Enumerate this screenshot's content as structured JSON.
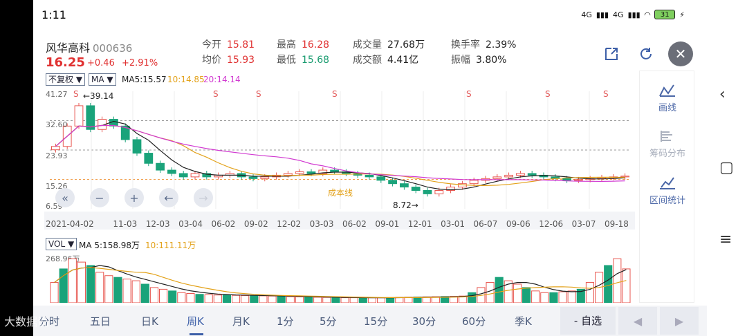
{
  "status": {
    "time": "1:11",
    "network": "4G",
    "battery": "31"
  },
  "stock": {
    "name": "风华高科",
    "code": "000636",
    "price": "16.25",
    "change": "+0.46",
    "change_pct": "+2.91%"
  },
  "quotes": {
    "open_label": "今开",
    "open": "15.81",
    "avg_label": "均价",
    "avg": "15.93",
    "high_label": "最高",
    "high": "16.28",
    "low_label": "最低",
    "low": "15.68",
    "vol_label": "成交量",
    "vol": "27.68万",
    "amt_label": "成交额",
    "amt": "4.41亿",
    "turnover_label": "换手率",
    "turnover": "2.39%",
    "amp_label": "振幅",
    "amp": "3.80%"
  },
  "kchart": {
    "adjust": "不复权 ▼",
    "indicator": "MA ▼",
    "ma5": "MA5:15.57",
    "ma10": "10:14.85",
    "ma20": "20:14.14",
    "y_labels": [
      "41.27",
      "32.60",
      "23.93",
      "15.26",
      "6.59"
    ],
    "high_mark": "←39.14",
    "low_mark": "8.72→",
    "cost_line": "成本线",
    "s_marker": "S",
    "dates": [
      "2021-04-02",
      "11-03",
      "12-03",
      "03-04",
      "06-02",
      "09-02",
      "12-02",
      "03-03",
      "06-02",
      "09-01",
      "12-01",
      "03-01",
      "06-07",
      "09-06",
      "12-06",
      "03-07",
      "09-18"
    ],
    "close": [
      25,
      31,
      37,
      30,
      33,
      31,
      27,
      23,
      20,
      18,
      17,
      16,
      17,
      16,
      16.5,
      17,
      16,
      15.5,
      16,
      16.5,
      17,
      17.5,
      17,
      18,
      17.5,
      17,
      16.5,
      16,
      15,
      14,
      13,
      12,
      11,
      12,
      13,
      14,
      15,
      15.5,
      16,
      16.5,
      17,
      16.5,
      16,
      15.5,
      15,
      15.2,
      15.5,
      15.8,
      16,
      16.25
    ],
    "colors": {
      "up": "#e8564f",
      "down": "#1aa37a",
      "ma5": "#222",
      "ma10": "#e3a21a",
      "ma20": "#d13ad1",
      "cost": "#f0a050"
    }
  },
  "volume": {
    "label": "VOL ▼",
    "ma5": "MA 5:158.98万",
    "ma10": "10:111.11万",
    "y_label": "268.96万",
    "values": [
      120,
      200,
      260,
      240,
      220,
      180,
      160,
      150,
      140,
      130,
      110,
      90,
      80,
      70,
      60,
      55,
      50,
      48,
      46,
      45,
      44,
      43,
      42,
      41,
      40,
      38,
      36,
      35,
      34,
      33,
      32,
      31,
      30,
      30,
      30,
      30,
      30,
      31,
      32,
      33,
      34,
      35,
      36,
      37,
      38,
      40,
      60,
      90,
      120,
      150,
      130,
      110,
      90,
      70,
      60,
      60,
      65,
      70,
      80,
      120,
      180,
      220,
      260,
      200
    ]
  },
  "controls": {
    "zoom_out_fast": "«",
    "zoom_out": "−",
    "zoom_in": "+",
    "back": "←",
    "forward": "→"
  },
  "side": {
    "draw": "画线",
    "chips": "筹码分布",
    "range": "区间统计"
  },
  "tabs": [
    "分时",
    "五日",
    "日K",
    "周K",
    "月K",
    "1分",
    "5分",
    "15分",
    "30分",
    "60分",
    "季K"
  ],
  "self_select": "- 自选",
  "watermark": "大数据说"
}
